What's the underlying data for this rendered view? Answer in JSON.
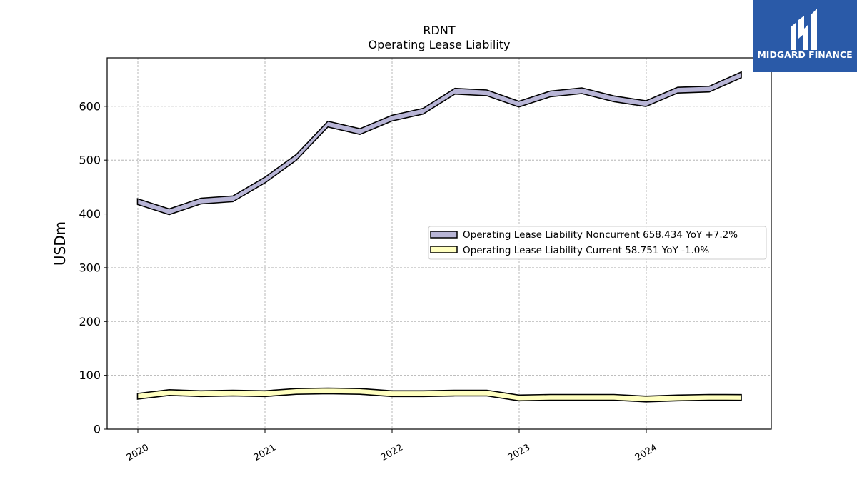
{
  "chart_data": {
    "type": "line",
    "title": "RDNT",
    "subtitle": "Operating Lease Liability",
    "xlabel": "",
    "ylabel": "USDm",
    "ylim": [
      0,
      690
    ],
    "yticks": [
      0,
      100,
      200,
      300,
      400,
      500,
      600
    ],
    "xticks": [
      "2020",
      "2021",
      "2022",
      "2023",
      "2024"
    ],
    "grid": true,
    "legend_position": "center-right",
    "x": [
      "2019-12-31",
      "2020-03-31",
      "2020-06-30",
      "2020-09-30",
      "2020-12-31",
      "2021-03-31",
      "2021-06-30",
      "2021-09-30",
      "2021-12-31",
      "2022-03-31",
      "2022-06-30",
      "2022-09-30",
      "2022-12-31",
      "2023-03-31",
      "2023-06-30",
      "2023-09-30",
      "2023-12-31",
      "2024-03-31",
      "2024-06-30",
      "2024-09-30"
    ],
    "series": [
      {
        "name": "Operating Lease Liability Noncurrent",
        "legend": "Operating Lease Liability Noncurrent  658.434 YoY +7.2%",
        "color": "#b8b5d6",
        "values": [
          423,
          404,
          424,
          428,
          463,
          505,
          567,
          553,
          578,
          591,
          628,
          625,
          604,
          623,
          629,
          614,
          605,
          630,
          632,
          658.434
        ]
      },
      {
        "name": "Operating Lease Liability Current",
        "legend": "Operating Lease Liability Current  58.751 YoY -1.0%",
        "color": "#ffffc0",
        "values": [
          61,
          68,
          66,
          67,
          66,
          70,
          71,
          70,
          66,
          66,
          67,
          67,
          58,
          59,
          59,
          59,
          56,
          58,
          59,
          58.751
        ]
      }
    ]
  },
  "logo": {
    "text": "MIDGARD FINANCE",
    "bg_color": "#2a5aa8"
  }
}
